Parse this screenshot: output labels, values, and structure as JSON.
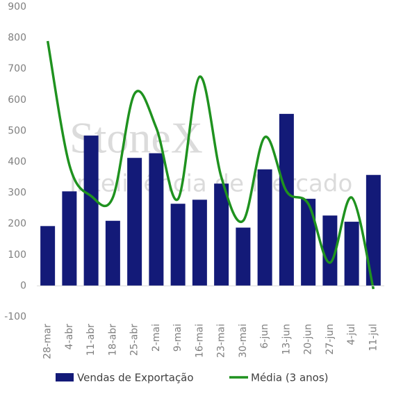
{
  "chart_data": {
    "type": "bar_line",
    "watermark": [
      "StoneX",
      "Inteligência de Mercado"
    ],
    "categories": [
      "28-mar",
      "4-abr",
      "11-abr",
      "18-abr",
      "25-abr",
      "2-mai",
      "9-mai",
      "16-mai",
      "23-mai",
      "30-mai",
      "6-jun",
      "13-jun",
      "20-jun",
      "27-jun",
      "4-jul",
      "11-jul"
    ],
    "series": [
      {
        "name": "Vendas de Exportação",
        "type": "bar",
        "color": "#131a78",
        "values": [
          193,
          305,
          485,
          210,
          413,
          428,
          265,
          278,
          330,
          188,
          376,
          555,
          281,
          227,
          207,
          358
        ]
      },
      {
        "name": "Média (3 anos)",
        "type": "line",
        "color": "#1f921f",
        "values": [
          790,
          390,
          290,
          285,
          620,
          510,
          280,
          675,
          350,
          210,
          480,
          305,
          265,
          75,
          285,
          -10
        ]
      }
    ],
    "ylim": [
      -100,
      900
    ],
    "yticks": [
      -100,
      0,
      100,
      200,
      300,
      400,
      500,
      600,
      700,
      800,
      900
    ],
    "grid": false,
    "legend": "bottom"
  }
}
